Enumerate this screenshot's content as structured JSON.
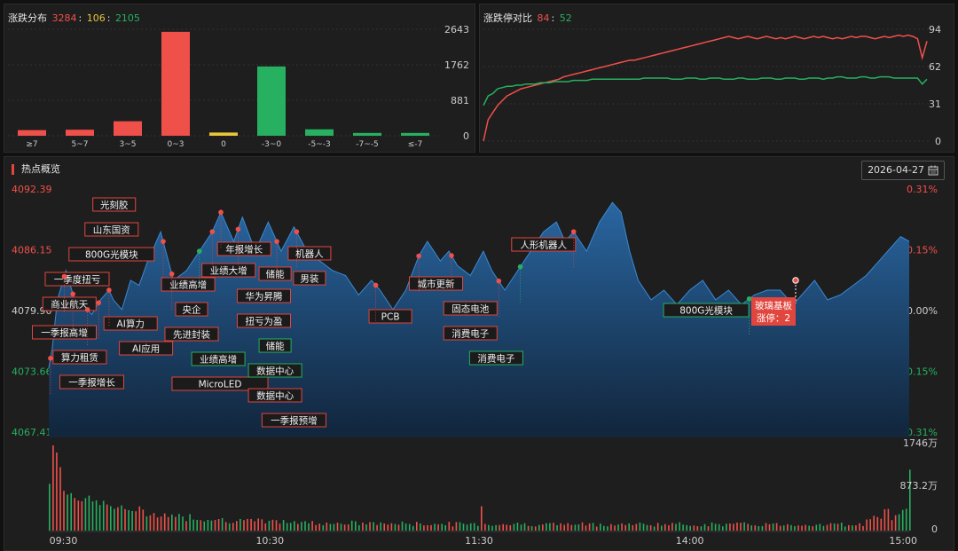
{
  "dist_panel": {
    "title": "涨跌分布",
    "up_count": "3284",
    "flat_count": "106",
    "down_count": "2105",
    "sep1": ":",
    "sep2": ":"
  },
  "zt_panel": {
    "title": "涨跌停对比",
    "up_limit": "84",
    "sep": ":",
    "down_limit": "52"
  },
  "hot_panel": {
    "title": "热点概览",
    "date": "2026-04-27",
    "calendar_icon": "calendar-icon"
  },
  "colors": {
    "up": "#f0504a",
    "down": "#26b060",
    "flat": "#e8c53a",
    "area": "#1f4e80"
  },
  "chart_data": [
    {
      "type": "bar",
      "categories": [
        "≥7",
        "5~7",
        "3~5",
        "0~3",
        "0",
        "-3~0",
        "-5~-3",
        "-7~-5",
        "≤-7"
      ],
      "values": [
        140,
        150,
        360,
        2580,
        80,
        1720,
        160,
        70,
        70
      ],
      "yticks": [
        "2643",
        "1762",
        "881",
        "0"
      ],
      "ylim": [
        0,
        2643
      ]
    },
    {
      "type": "line",
      "yticks": [
        "94",
        "62",
        "31",
        "0"
      ],
      "ylim": [
        0,
        94
      ],
      "series": [
        {
          "color": "#f0504a",
          "values": [
            0,
            18,
            24,
            30,
            34,
            38,
            40,
            42,
            44,
            45,
            46,
            47,
            48,
            49,
            50,
            51,
            52,
            54,
            55,
            56,
            57,
            58,
            59,
            60,
            61,
            62,
            63,
            64,
            65,
            66,
            67,
            68,
            68,
            69,
            70,
            71,
            72,
            73,
            74,
            75,
            76,
            77,
            78,
            79,
            80,
            81,
            82,
            83,
            84,
            85,
            86,
            87,
            88,
            87,
            86,
            87,
            88,
            87,
            86,
            87,
            88,
            87,
            86,
            87,
            86,
            87,
            88,
            87,
            86,
            87,
            88,
            87,
            88,
            87,
            86,
            87,
            86,
            87,
            88,
            87,
            88,
            88,
            87,
            86,
            87,
            88,
            87,
            88,
            89,
            88,
            89,
            88,
            86,
            70,
            84
          ]
        },
        {
          "color": "#26b060",
          "values": [
            30,
            38,
            40,
            44,
            45,
            46,
            46,
            47,
            47,
            48,
            48,
            48,
            49,
            49,
            49,
            50,
            50,
            50,
            50,
            51,
            51,
            51,
            51,
            52,
            52,
            52,
            52,
            52,
            52,
            52,
            52,
            52,
            52,
            52,
            53,
            53,
            53,
            53,
            53,
            53,
            52,
            52,
            52,
            53,
            53,
            53,
            52,
            52,
            53,
            53,
            53,
            52,
            52,
            52,
            53,
            53,
            52,
            52,
            52,
            53,
            53,
            53,
            52,
            52,
            53,
            53,
            53,
            52,
            52,
            53,
            53,
            53,
            52,
            53,
            53,
            54,
            54,
            53,
            53,
            53,
            54,
            54,
            53,
            53,
            54,
            54,
            54,
            53,
            53,
            53,
            53,
            53,
            53,
            48,
            52
          ]
        }
      ]
    },
    {
      "type": "area",
      "x_ticks": [
        "09:30",
        "10:30",
        "11:30",
        "14:00",
        "15:00"
      ],
      "y_left": [
        "4092.39",
        "4086.15",
        "4079.90",
        "4073.66",
        "4067.41"
      ],
      "y_right": [
        "0.31%",
        "0.15%",
        "0.00%",
        "-0.15%",
        "-0.31%"
      ],
      "ylim": [
        4067.41,
        4092.39
      ],
      "volume_ticks": [
        "1746万",
        "873.2万",
        "0"
      ],
      "annotations": [
        "光刻胶",
        "山东国资",
        "800G光模块",
        "一季度扭亏",
        "商业航天",
        "一季报高增",
        "算力租赁",
        "一季报增长",
        "AI算力",
        "AI应用",
        "业绩高增",
        "央企",
        "先进封装",
        "业绩大增",
        "年报增长",
        "业绩高增",
        "MicroLED",
        "储能",
        "华为昇腾",
        "扭亏为盈",
        "储能",
        "数据中心",
        "数据中心",
        "一季报预增",
        "机器人",
        "男装",
        "PCB",
        "城市更新",
        "固态电池",
        "消费电子",
        "消费电子",
        "人形机器人",
        "800G光模块",
        "玻璃基板",
        "涨停：2"
      ]
    }
  ]
}
